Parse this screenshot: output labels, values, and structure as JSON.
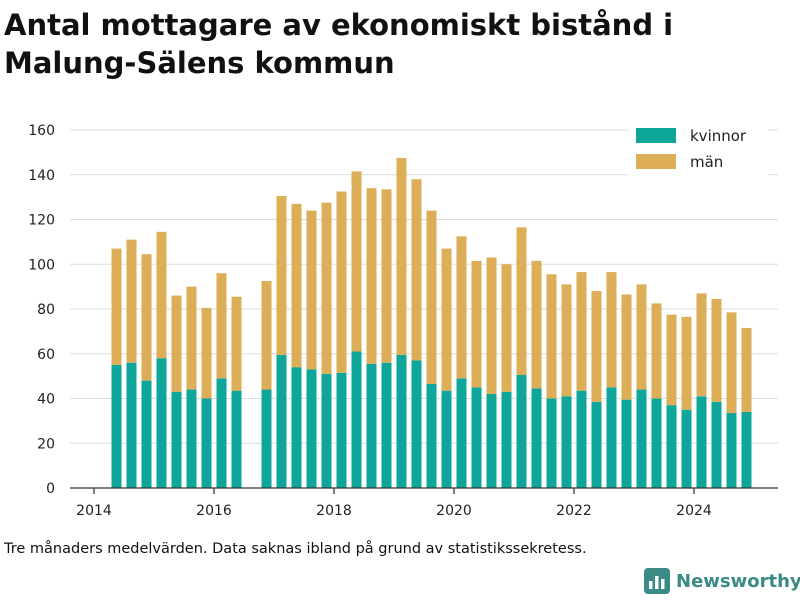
{
  "title": "Antal mottagare av ekonomiskt bistånd i Malung-Sälens kommun",
  "note": "Tre månaders medelvärden. Data saknas ibland på grund av statistikssekretess.",
  "brand": {
    "name": "Newsworthy",
    "icon": "bar-chart-logo-icon",
    "color": "#3a8a86"
  },
  "colors": {
    "kvinnor": "#0ea69b",
    "man": "#dcae57",
    "grid": "#dddddd",
    "axis": "#333333"
  },
  "chart_data": {
    "type": "bar",
    "stacked": true,
    "x_ticks": [
      "2014",
      "2016",
      "2018",
      "2020",
      "2022",
      "2024"
    ],
    "y_ticks": [
      "0",
      "20",
      "40",
      "60",
      "80",
      "100",
      "120",
      "140",
      "160"
    ],
    "xlim": [
      2013.6,
      2025.4
    ],
    "ylim": [
      0,
      160
    ],
    "legend_position": "top-right",
    "grid": true,
    "x": [
      2014.375,
      2014.625,
      2014.875,
      2015.125,
      2015.375,
      2015.625,
      2015.875,
      2016.125,
      2016.375,
      2016.875,
      2017.125,
      2017.375,
      2017.625,
      2017.875,
      2018.125,
      2018.375,
      2018.625,
      2018.875,
      2019.125,
      2019.375,
      2019.625,
      2019.875,
      2020.125,
      2020.375,
      2020.625,
      2020.875,
      2021.125,
      2021.375,
      2021.625,
      2021.875,
      2022.125,
      2022.375,
      2022.625,
      2022.875,
      2023.125,
      2023.375,
      2023.625,
      2023.875,
      2024.125,
      2024.375,
      2024.625,
      2024.875
    ],
    "series": [
      {
        "name": "kvinnor",
        "values": [
          55,
          56,
          48,
          58,
          43,
          44,
          40,
          49,
          43.5,
          44,
          59.5,
          54,
          53,
          51,
          51.5,
          61,
          55.5,
          56,
          59.5,
          57,
          46.5,
          43.5,
          49,
          45,
          42,
          43,
          50.5,
          44.5,
          40,
          41,
          43.5,
          38.5,
          45,
          39.5,
          44,
          40,
          37,
          35,
          41,
          38.5,
          33.5,
          34
        ]
      },
      {
        "name": "män",
        "values": [
          52,
          55,
          56.5,
          56.5,
          43,
          46,
          40.5,
          47,
          42,
          48.5,
          71,
          73,
          71,
          76.5,
          81,
          80.5,
          78.5,
          77.5,
          88,
          81,
          77.5,
          63.5,
          63.5,
          56.5,
          61,
          57,
          66,
          57,
          55.5,
          50,
          53,
          49.5,
          51.5,
          47,
          47,
          42.5,
          40.5,
          41.5,
          46,
          46,
          45,
          37.5
        ]
      }
    ]
  }
}
